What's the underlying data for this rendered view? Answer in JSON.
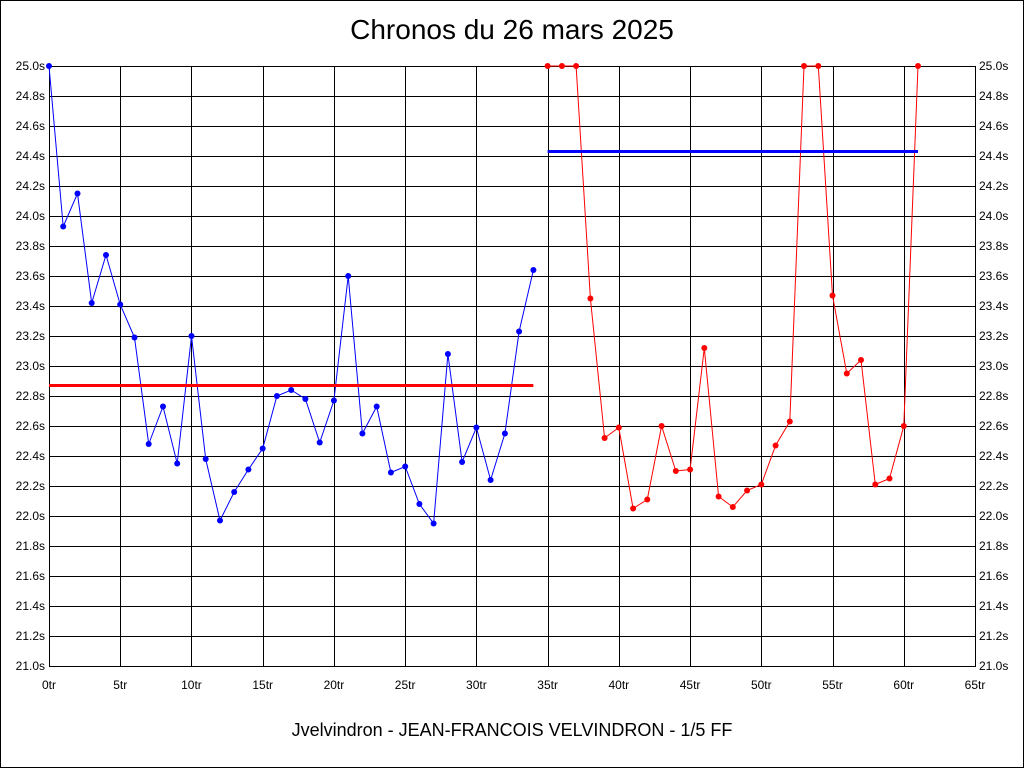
{
  "chart_data": {
    "type": "line",
    "title": "Chronos du 26 mars 2025",
    "subtitle": "Jvelvindron - JEAN-FRANCOIS VELVINDRON - 1/5 FF",
    "xlabel": "",
    "ylabel": "",
    "xlim": [
      0,
      65
    ],
    "ylim": [
      21.0,
      25.0
    ],
    "x_ticks": [
      0,
      5,
      10,
      15,
      20,
      25,
      30,
      35,
      40,
      45,
      50,
      55,
      60,
      65
    ],
    "x_tick_labels": [
      "0tr",
      "5tr",
      "10tr",
      "15tr",
      "20tr",
      "25tr",
      "30tr",
      "35tr",
      "40tr",
      "45tr",
      "50tr",
      "55tr",
      "60tr",
      "65tr"
    ],
    "y_ticks": [
      21.0,
      21.2,
      21.4,
      21.6,
      21.8,
      22.0,
      22.2,
      22.4,
      22.6,
      22.8,
      23.0,
      23.2,
      23.4,
      23.6,
      23.8,
      24.0,
      24.2,
      24.4,
      24.6,
      24.8,
      25.0
    ],
    "y_tick_labels": [
      "21.0s",
      "21.2s",
      "21.4s",
      "21.6s",
      "21.8s",
      "22.0s",
      "22.2s",
      "22.4s",
      "22.6s",
      "22.8s",
      "23.0s",
      "23.2s",
      "23.4s",
      "23.6s",
      "23.8s",
      "24.0s",
      "24.2s",
      "24.4s",
      "24.6s",
      "24.8s",
      "25.0s"
    ],
    "grid": true,
    "y_axis_both_sides": true,
    "series": [
      {
        "color": "#0000ff",
        "x": [
          0,
          1,
          2,
          3,
          4,
          5,
          6,
          7,
          8,
          9,
          10,
          11,
          12,
          13,
          14,
          15,
          16,
          17,
          18,
          19,
          20,
          21,
          22,
          23,
          24,
          25,
          26,
          27,
          28,
          29,
          30,
          31,
          32,
          33,
          34
        ],
        "values": [
          25.0,
          23.93,
          24.15,
          23.42,
          23.74,
          23.41,
          23.19,
          22.48,
          22.73,
          22.35,
          23.2,
          22.38,
          21.97,
          22.16,
          22.31,
          22.45,
          22.8,
          22.84,
          22.78,
          22.49,
          22.77,
          23.6,
          22.55,
          22.73,
          22.29,
          22.33,
          22.08,
          21.95,
          23.08,
          22.36,
          22.59,
          22.24,
          22.55,
          23.23,
          23.64
        ]
      },
      {
        "color": "#ff0000",
        "x": [
          35,
          36,
          37,
          38,
          39,
          40,
          41,
          42,
          43,
          44,
          45,
          46,
          47,
          48,
          49,
          50,
          51,
          52,
          53,
          54,
          55,
          56,
          57,
          58,
          59,
          60,
          61
        ],
        "values": [
          25.0,
          25.0,
          25.0,
          23.45,
          22.52,
          22.59,
          22.05,
          22.11,
          22.6,
          22.3,
          22.31,
          23.12,
          22.13,
          22.06,
          22.17,
          22.21,
          22.47,
          22.63,
          25.0,
          25.0,
          23.47,
          22.95,
          23.04,
          22.21,
          22.25,
          22.6,
          25.0
        ]
      }
    ],
    "averages": [
      {
        "color": "#ff0000",
        "value": 22.87,
        "x_range": [
          0,
          34
        ]
      },
      {
        "color": "#0000ff",
        "value": 24.43,
        "x_range": [
          35,
          61
        ]
      }
    ]
  }
}
